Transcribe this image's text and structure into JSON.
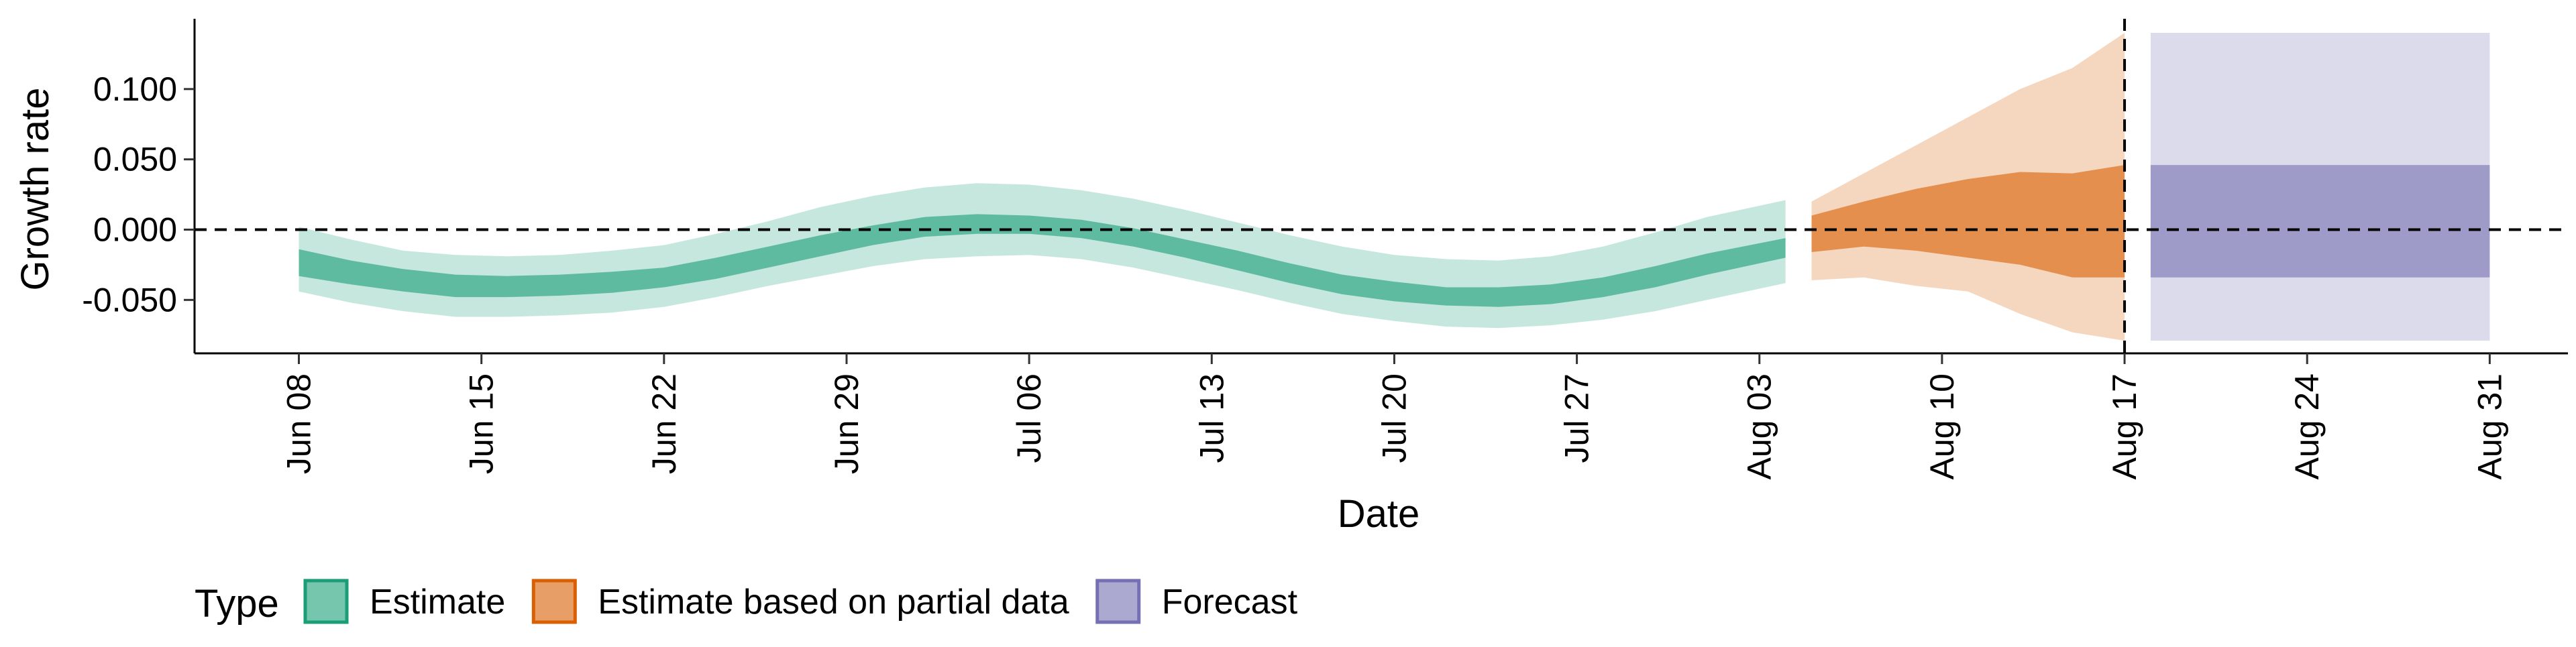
{
  "chart_data": {
    "type": "area",
    "xlabel": "Date",
    "ylabel": "Growth rate",
    "x_tick_labels": [
      "Jun 08",
      "Jun 15",
      "Jun 22",
      "Jun 29",
      "Jul 06",
      "Jul 13",
      "Jul 20",
      "Jul 27",
      "Aug 03",
      "Aug 10",
      "Aug 17",
      "Aug 24",
      "Aug 31"
    ],
    "x_tick_dates": [
      "2020-06-08",
      "2020-06-15",
      "2020-06-22",
      "2020-06-29",
      "2020-07-06",
      "2020-07-13",
      "2020-07-20",
      "2020-07-27",
      "2020-08-03",
      "2020-08-10",
      "2020-08-17",
      "2020-08-24",
      "2020-08-31"
    ],
    "y_tick_labels": [
      "-0.050",
      "0.000",
      "0.050",
      "0.100"
    ],
    "y_ticks": [
      -0.05,
      0.0,
      0.05,
      0.1
    ],
    "ylim": [
      -0.088,
      0.15
    ],
    "xlim": [
      "2020-06-04",
      "2020-09-03"
    ],
    "reference_lines": {
      "y": 0.0,
      "x": "2020-08-17"
    },
    "legend": {
      "title": "Type",
      "position": "bottom",
      "entries": [
        {
          "label": "Estimate",
          "color": "#1b9e77"
        },
        {
          "label": "Estimate based on partial data",
          "color": "#d95f02"
        },
        {
          "label": "Forecast",
          "color": "#7570b3"
        }
      ]
    },
    "series": [
      {
        "name": "Estimate",
        "color": "#1b9e77",
        "x": [
          "2020-06-08",
          "2020-06-10",
          "2020-06-12",
          "2020-06-14",
          "2020-06-16",
          "2020-06-18",
          "2020-06-20",
          "2020-06-22",
          "2020-06-24",
          "2020-06-26",
          "2020-06-28",
          "2020-06-30",
          "2020-07-02",
          "2020-07-04",
          "2020-07-06",
          "2020-07-08",
          "2020-07-10",
          "2020-07-12",
          "2020-07-14",
          "2020-07-16",
          "2020-07-18",
          "2020-07-20",
          "2020-07-22",
          "2020-07-24",
          "2020-07-26",
          "2020-07-28",
          "2020-07-30",
          "2020-08-01",
          "2020-08-04"
        ],
        "lower_90": [
          -0.044,
          -0.052,
          -0.058,
          -0.062,
          -0.062,
          -0.061,
          -0.059,
          -0.055,
          -0.048,
          -0.04,
          -0.033,
          -0.026,
          -0.021,
          -0.019,
          -0.018,
          -0.021,
          -0.027,
          -0.035,
          -0.043,
          -0.052,
          -0.06,
          -0.065,
          -0.069,
          -0.07,
          -0.068,
          -0.064,
          -0.058,
          -0.05,
          -0.038
        ],
        "lower_50": [
          -0.033,
          -0.039,
          -0.044,
          -0.048,
          -0.048,
          -0.047,
          -0.045,
          -0.041,
          -0.035,
          -0.027,
          -0.019,
          -0.011,
          -0.005,
          -0.003,
          -0.003,
          -0.006,
          -0.012,
          -0.02,
          -0.029,
          -0.038,
          -0.046,
          -0.051,
          -0.054,
          -0.055,
          -0.053,
          -0.048,
          -0.041,
          -0.032,
          -0.02
        ],
        "upper_50": [
          -0.014,
          -0.022,
          -0.028,
          -0.032,
          -0.033,
          -0.032,
          -0.03,
          -0.027,
          -0.02,
          -0.012,
          -0.004,
          0.003,
          0.009,
          0.011,
          0.01,
          0.007,
          0.001,
          -0.007,
          -0.015,
          -0.024,
          -0.032,
          -0.037,
          -0.041,
          -0.041,
          -0.039,
          -0.034,
          -0.026,
          -0.017,
          -0.006
        ],
        "upper_90": [
          0.002,
          -0.007,
          -0.015,
          -0.018,
          -0.019,
          -0.018,
          -0.015,
          -0.011,
          -0.003,
          0.006,
          0.016,
          0.024,
          0.03,
          0.033,
          0.032,
          0.028,
          0.022,
          0.014,
          0.005,
          -0.004,
          -0.012,
          -0.018,
          -0.021,
          -0.022,
          -0.019,
          -0.012,
          -0.002,
          0.009,
          0.021
        ]
      },
      {
        "name": "Estimate based on partial data",
        "color": "#d95f02",
        "x": [
          "2020-08-05",
          "2020-08-07",
          "2020-08-09",
          "2020-08-11",
          "2020-08-13",
          "2020-08-15",
          "2020-08-17"
        ],
        "lower_90": [
          -0.036,
          -0.034,
          -0.04,
          -0.044,
          -0.06,
          -0.073,
          -0.079
        ],
        "lower_50": [
          -0.016,
          -0.012,
          -0.015,
          -0.02,
          -0.025,
          -0.034,
          -0.034
        ],
        "upper_50": [
          0.01,
          0.02,
          0.029,
          0.036,
          0.041,
          0.04,
          0.046
        ],
        "upper_90": [
          0.02,
          0.04,
          0.06,
          0.08,
          0.1,
          0.115,
          0.14
        ]
      },
      {
        "name": "Forecast",
        "color": "#7570b3",
        "x": [
          "2020-08-18",
          "2020-08-31"
        ],
        "lower_90": [
          -0.079,
          -0.079
        ],
        "lower_50": [
          -0.034,
          -0.034
        ],
        "upper_50": [
          0.046,
          0.046
        ],
        "upper_90": [
          0.14,
          0.14
        ]
      }
    ]
  }
}
